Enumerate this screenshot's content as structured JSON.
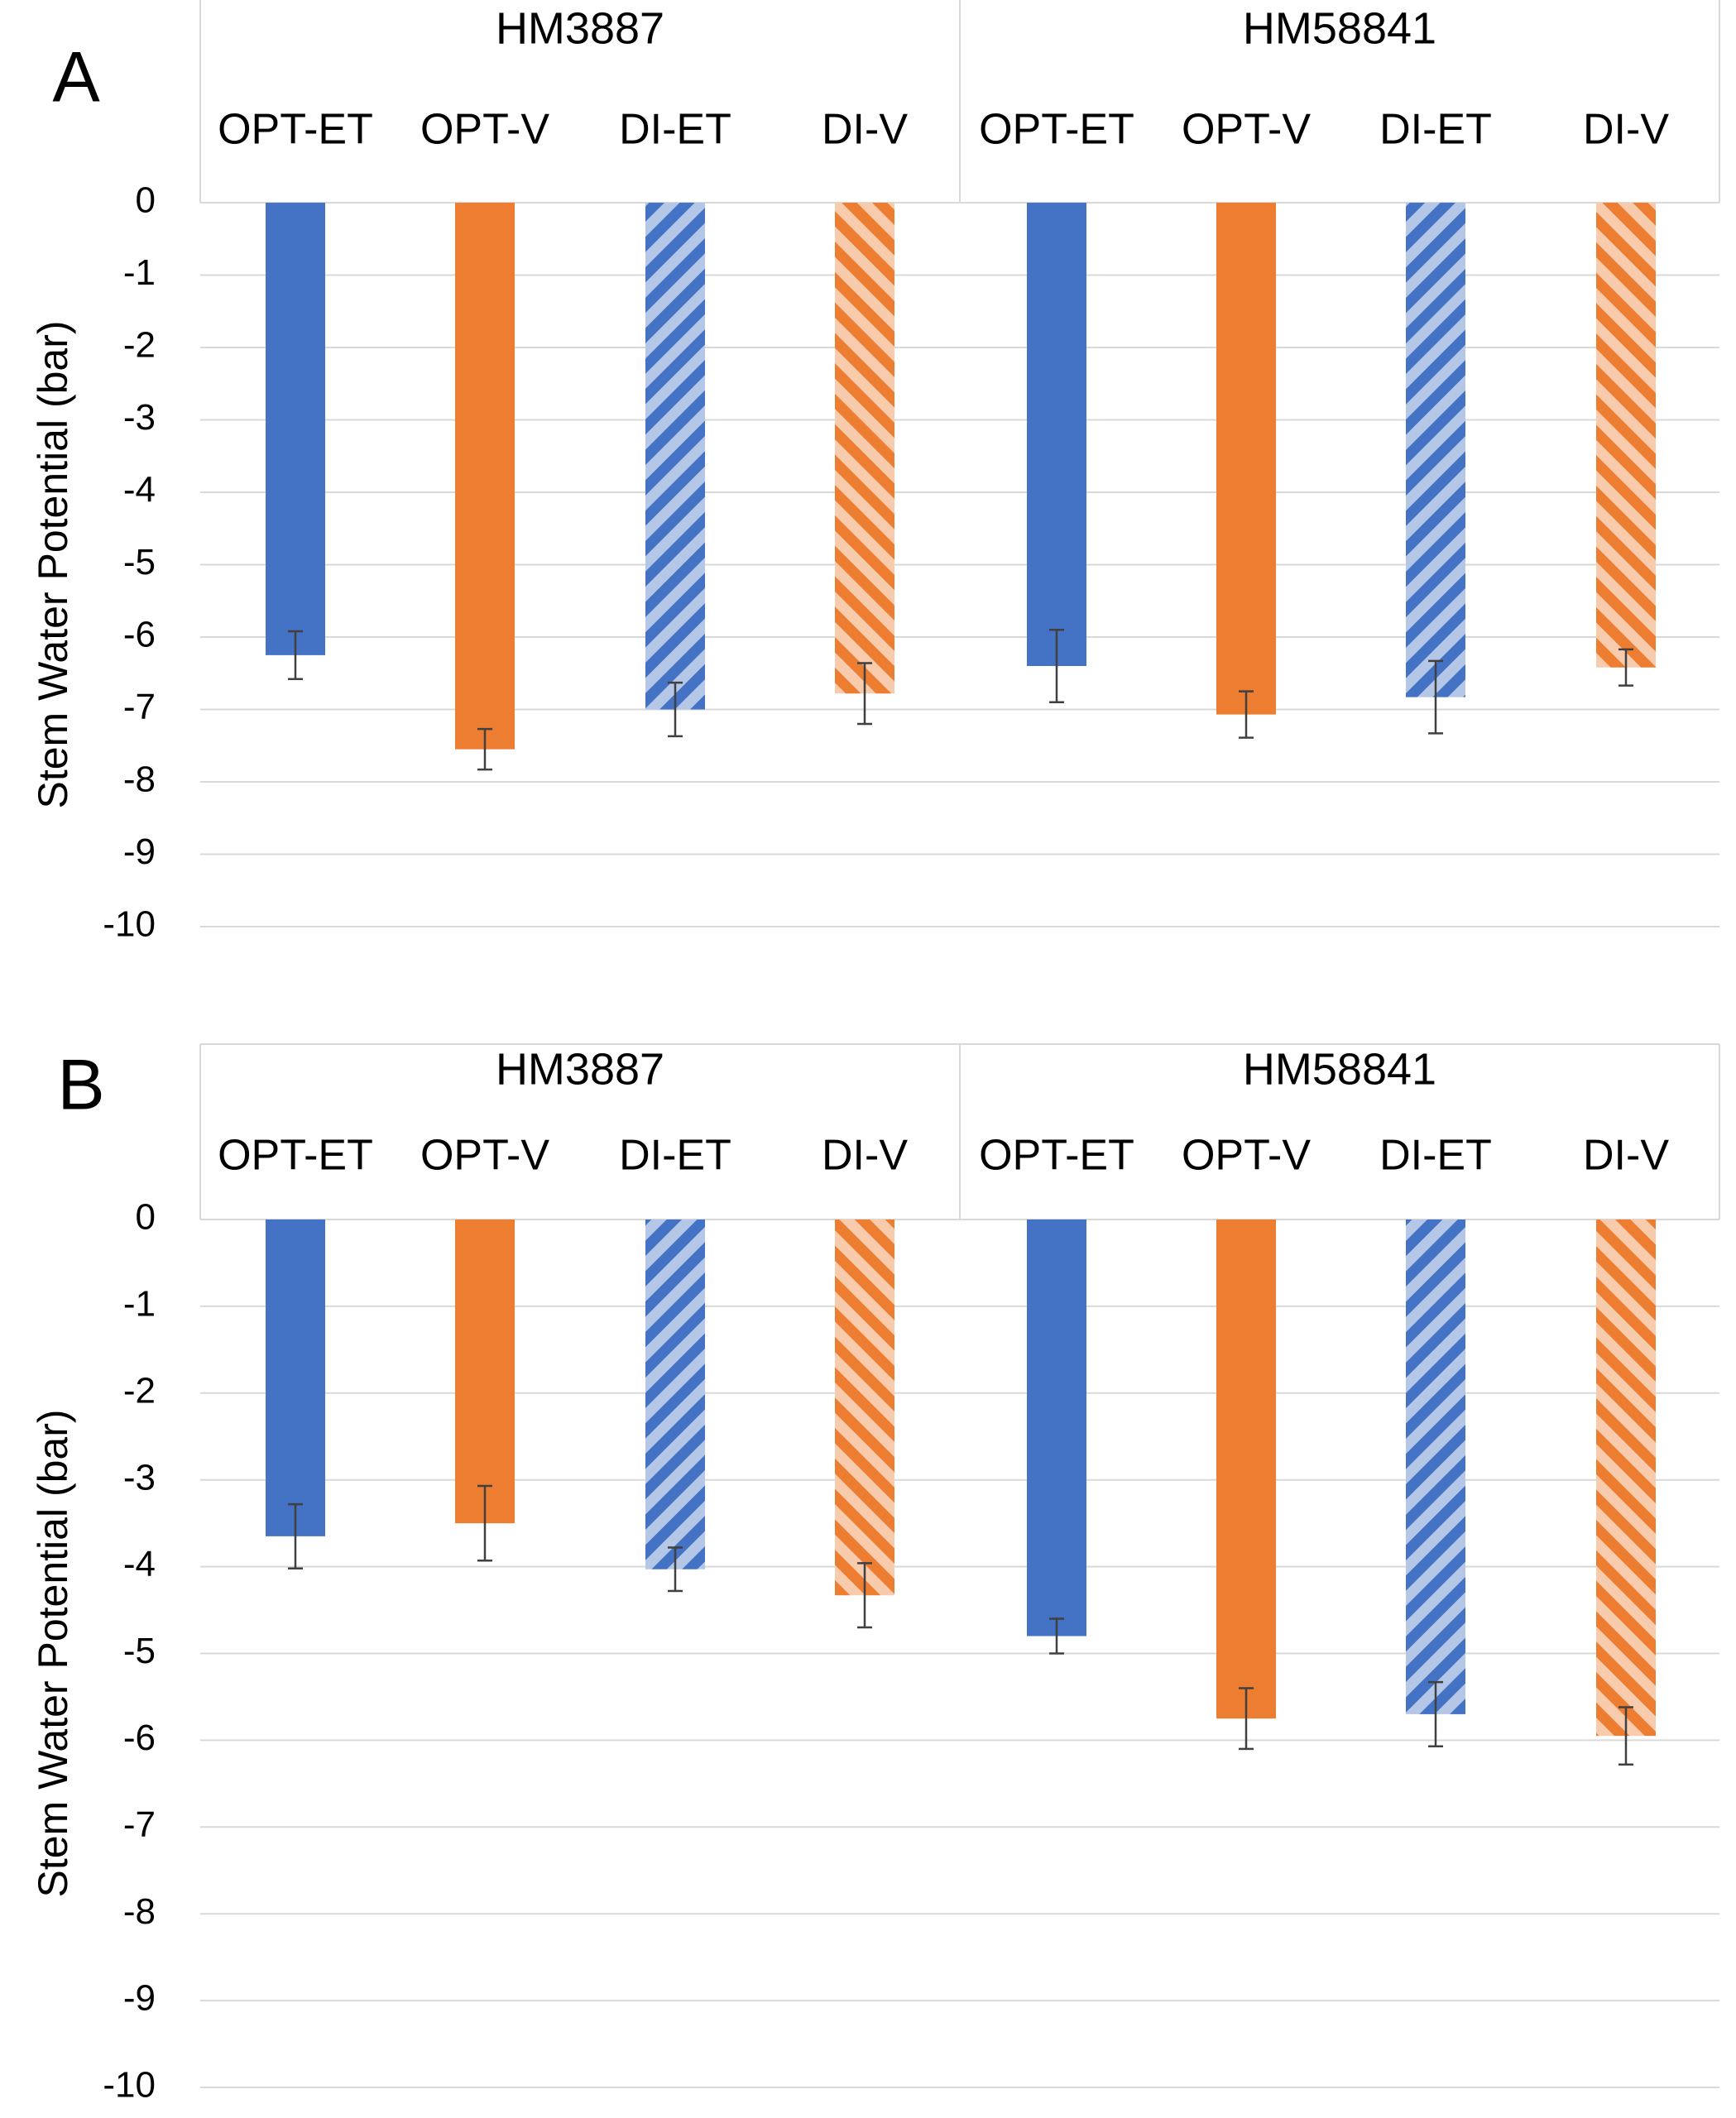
{
  "colors": {
    "blue": "#4472C4",
    "orange": "#ED7D31",
    "blue_light": "#B4C7E7",
    "orange_light": "#F8CBAD",
    "gridline": "#D9D9D9",
    "header_border": "#D9D9D9",
    "error_bar": "#404040"
  },
  "chart_data": [
    {
      "type": "bar",
      "panel_label": "A",
      "ylabel": "Stem Water Potential (bar)",
      "ylim": [
        -10,
        0
      ],
      "yticks": [
        "0",
        "-1",
        "-2",
        "-3",
        "-4",
        "-5",
        "-6",
        "-7",
        "-8",
        "-9",
        "-10"
      ],
      "grid": true,
      "groups": [
        {
          "name": "HM3887",
          "categories": [
            "OPT-ET",
            "OPT-V",
            "DI-ET",
            "DI-V"
          ],
          "values": [
            -6.25,
            -7.55,
            -7.0,
            -6.78
          ],
          "errors": [
            0.33,
            0.28,
            0.37,
            0.42
          ]
        },
        {
          "name": "HM58841",
          "categories": [
            "OPT-ET",
            "OPT-V",
            "DI-ET",
            "DI-V"
          ],
          "values": [
            -6.4,
            -7.07,
            -6.83,
            -6.42
          ],
          "errors": [
            0.5,
            0.32,
            0.5,
            0.25
          ]
        }
      ],
      "bar_styles": [
        "solid-blue",
        "solid-orange",
        "hatched-blue",
        "hatched-orange"
      ]
    },
    {
      "type": "bar",
      "panel_label": "B",
      "ylabel": "Stem Water Potential (bar)",
      "ylim": [
        -10,
        0
      ],
      "yticks": [
        "0",
        "-1",
        "-2",
        "-3",
        "-4",
        "-5",
        "-6",
        "-7",
        "-8",
        "-9",
        "-10"
      ],
      "grid": true,
      "groups": [
        {
          "name": "HM3887",
          "categories": [
            "OPT-ET",
            "OPT-V",
            "DI-ET",
            "DI-V"
          ],
          "values": [
            -3.65,
            -3.5,
            -4.03,
            -4.33
          ],
          "errors": [
            0.37,
            0.43,
            0.25,
            0.37
          ]
        },
        {
          "name": "HM58841",
          "categories": [
            "OPT-ET",
            "OPT-V",
            "DI-ET",
            "DI-V"
          ],
          "values": [
            -4.8,
            -5.75,
            -5.7,
            -5.95
          ],
          "errors": [
            0.2,
            0.35,
            0.37,
            0.33
          ]
        }
      ],
      "bar_styles": [
        "solid-blue",
        "solid-orange",
        "hatched-blue",
        "hatched-orange"
      ]
    }
  ]
}
